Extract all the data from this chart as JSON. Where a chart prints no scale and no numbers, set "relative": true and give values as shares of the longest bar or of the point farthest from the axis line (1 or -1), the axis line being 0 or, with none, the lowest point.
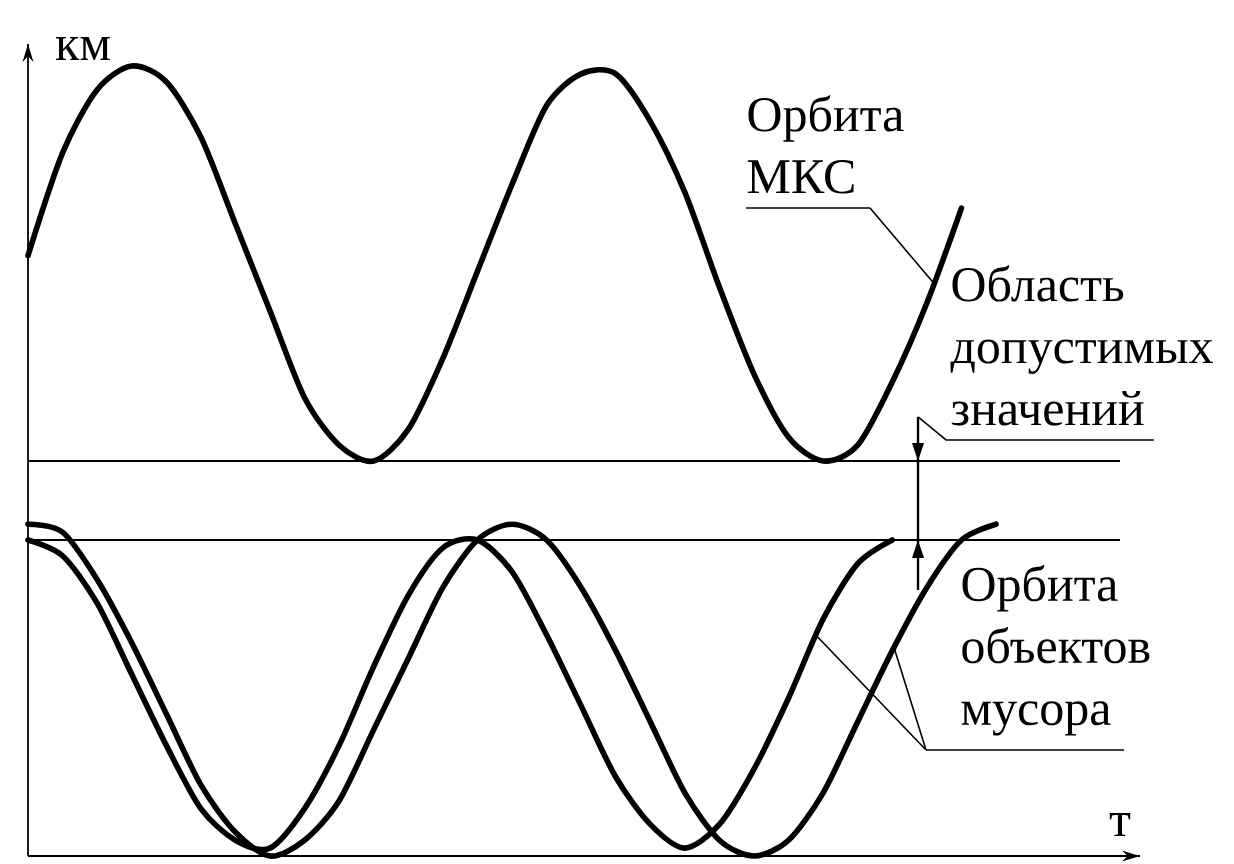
{
  "chart_data": {
    "type": "line",
    "relative": true,
    "xlabel": "т",
    "ylabel": "км",
    "line_style": "solid",
    "categories": [
      null,
      null,
      null,
      null,
      null,
      null,
      null,
      null,
      null,
      null,
      null,
      null,
      null,
      null,
      null,
      null,
      null,
      null,
      null,
      null,
      null,
      null,
      null,
      null,
      null,
      null,
      null,
      null,
      null
    ],
    "series": [
      {
        "name": "Орбита МКС",
        "color": "#000000",
        "values": [
          0.76,
          0.89,
          0.97,
          1.0,
          0.98,
          0.91,
          0.8,
          0.69,
          0.58,
          0.52,
          0.5,
          0.54,
          0.63,
          0.74,
          0.85,
          0.95,
          0.99,
          0.99,
          0.93,
          0.84,
          0.72,
          0.61,
          0.53,
          0.5,
          0.52,
          0.6,
          0.7,
          0.82,
          null
        ]
      },
      {
        "name": "Орбита объектов мусора",
        "color": "#000000",
        "values": [
          0.4,
          0.38,
          0.32,
          0.23,
          0.14,
          0.06,
          0.02,
          0.01,
          0.06,
          0.14,
          0.24,
          0.33,
          0.39,
          0.4,
          0.36,
          0.28,
          0.19,
          0.1,
          0.04,
          0.01,
          0.04,
          0.11,
          0.2,
          0.3,
          0.37,
          0.4,
          null,
          null,
          null
        ]
      },
      {
        "color": "#000000",
        "values": [
          0.42,
          0.41,
          0.35,
          0.27,
          0.18,
          0.09,
          0.03,
          0.0,
          0.02,
          0.07,
          0.16,
          0.25,
          0.34,
          0.4,
          0.42,
          0.4,
          0.34,
          0.26,
          0.17,
          0.08,
          0.02,
          0.0,
          0.02,
          0.08,
          0.17,
          0.26,
          0.34,
          0.4,
          0.42
        ]
      }
    ],
    "ref_lines": [
      {
        "axis": "y",
        "value": 0.5
      },
      {
        "axis": "y",
        "value": 0.4
      }
    ],
    "annotations": [
      "Область допустимых значений"
    ]
  }
}
